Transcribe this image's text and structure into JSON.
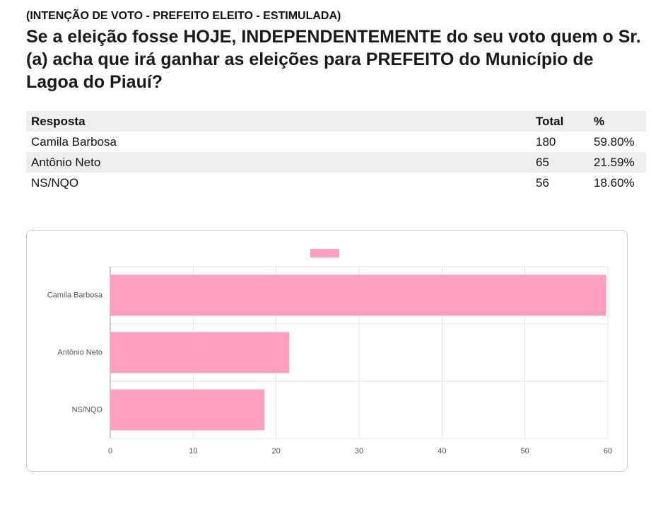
{
  "header": {
    "subtitle": "(INTENÇÃO DE VOTO - PREFEITO ELEITO - ESTIMULADA)",
    "title": "Se a eleição fosse HOJE, INDEPENDENTEMENTE do seu voto quem o Sr.(a) acha que irá ganhar as eleições para PREFEITO do Município de Lagoa do Piauí?"
  },
  "table": {
    "columns": [
      "Resposta",
      "Total",
      "%"
    ],
    "rows": [
      [
        "Camila Barbosa",
        "180",
        "59.80%"
      ],
      [
        "Antônio Neto",
        "65",
        "21.59%"
      ],
      [
        "NS/NQO",
        "56",
        "18.60%"
      ]
    ]
  },
  "chart_data": {
    "type": "hbar",
    "categories": [
      "Camila Barbosa",
      "Antônio Neto",
      "NS/NQO"
    ],
    "values": [
      59.8,
      21.59,
      18.6
    ],
    "color": "#fd9fbd",
    "xlim": [
      0,
      60
    ],
    "xticks": [
      0,
      10,
      20,
      30,
      40,
      50,
      60
    ],
    "grid": true
  }
}
